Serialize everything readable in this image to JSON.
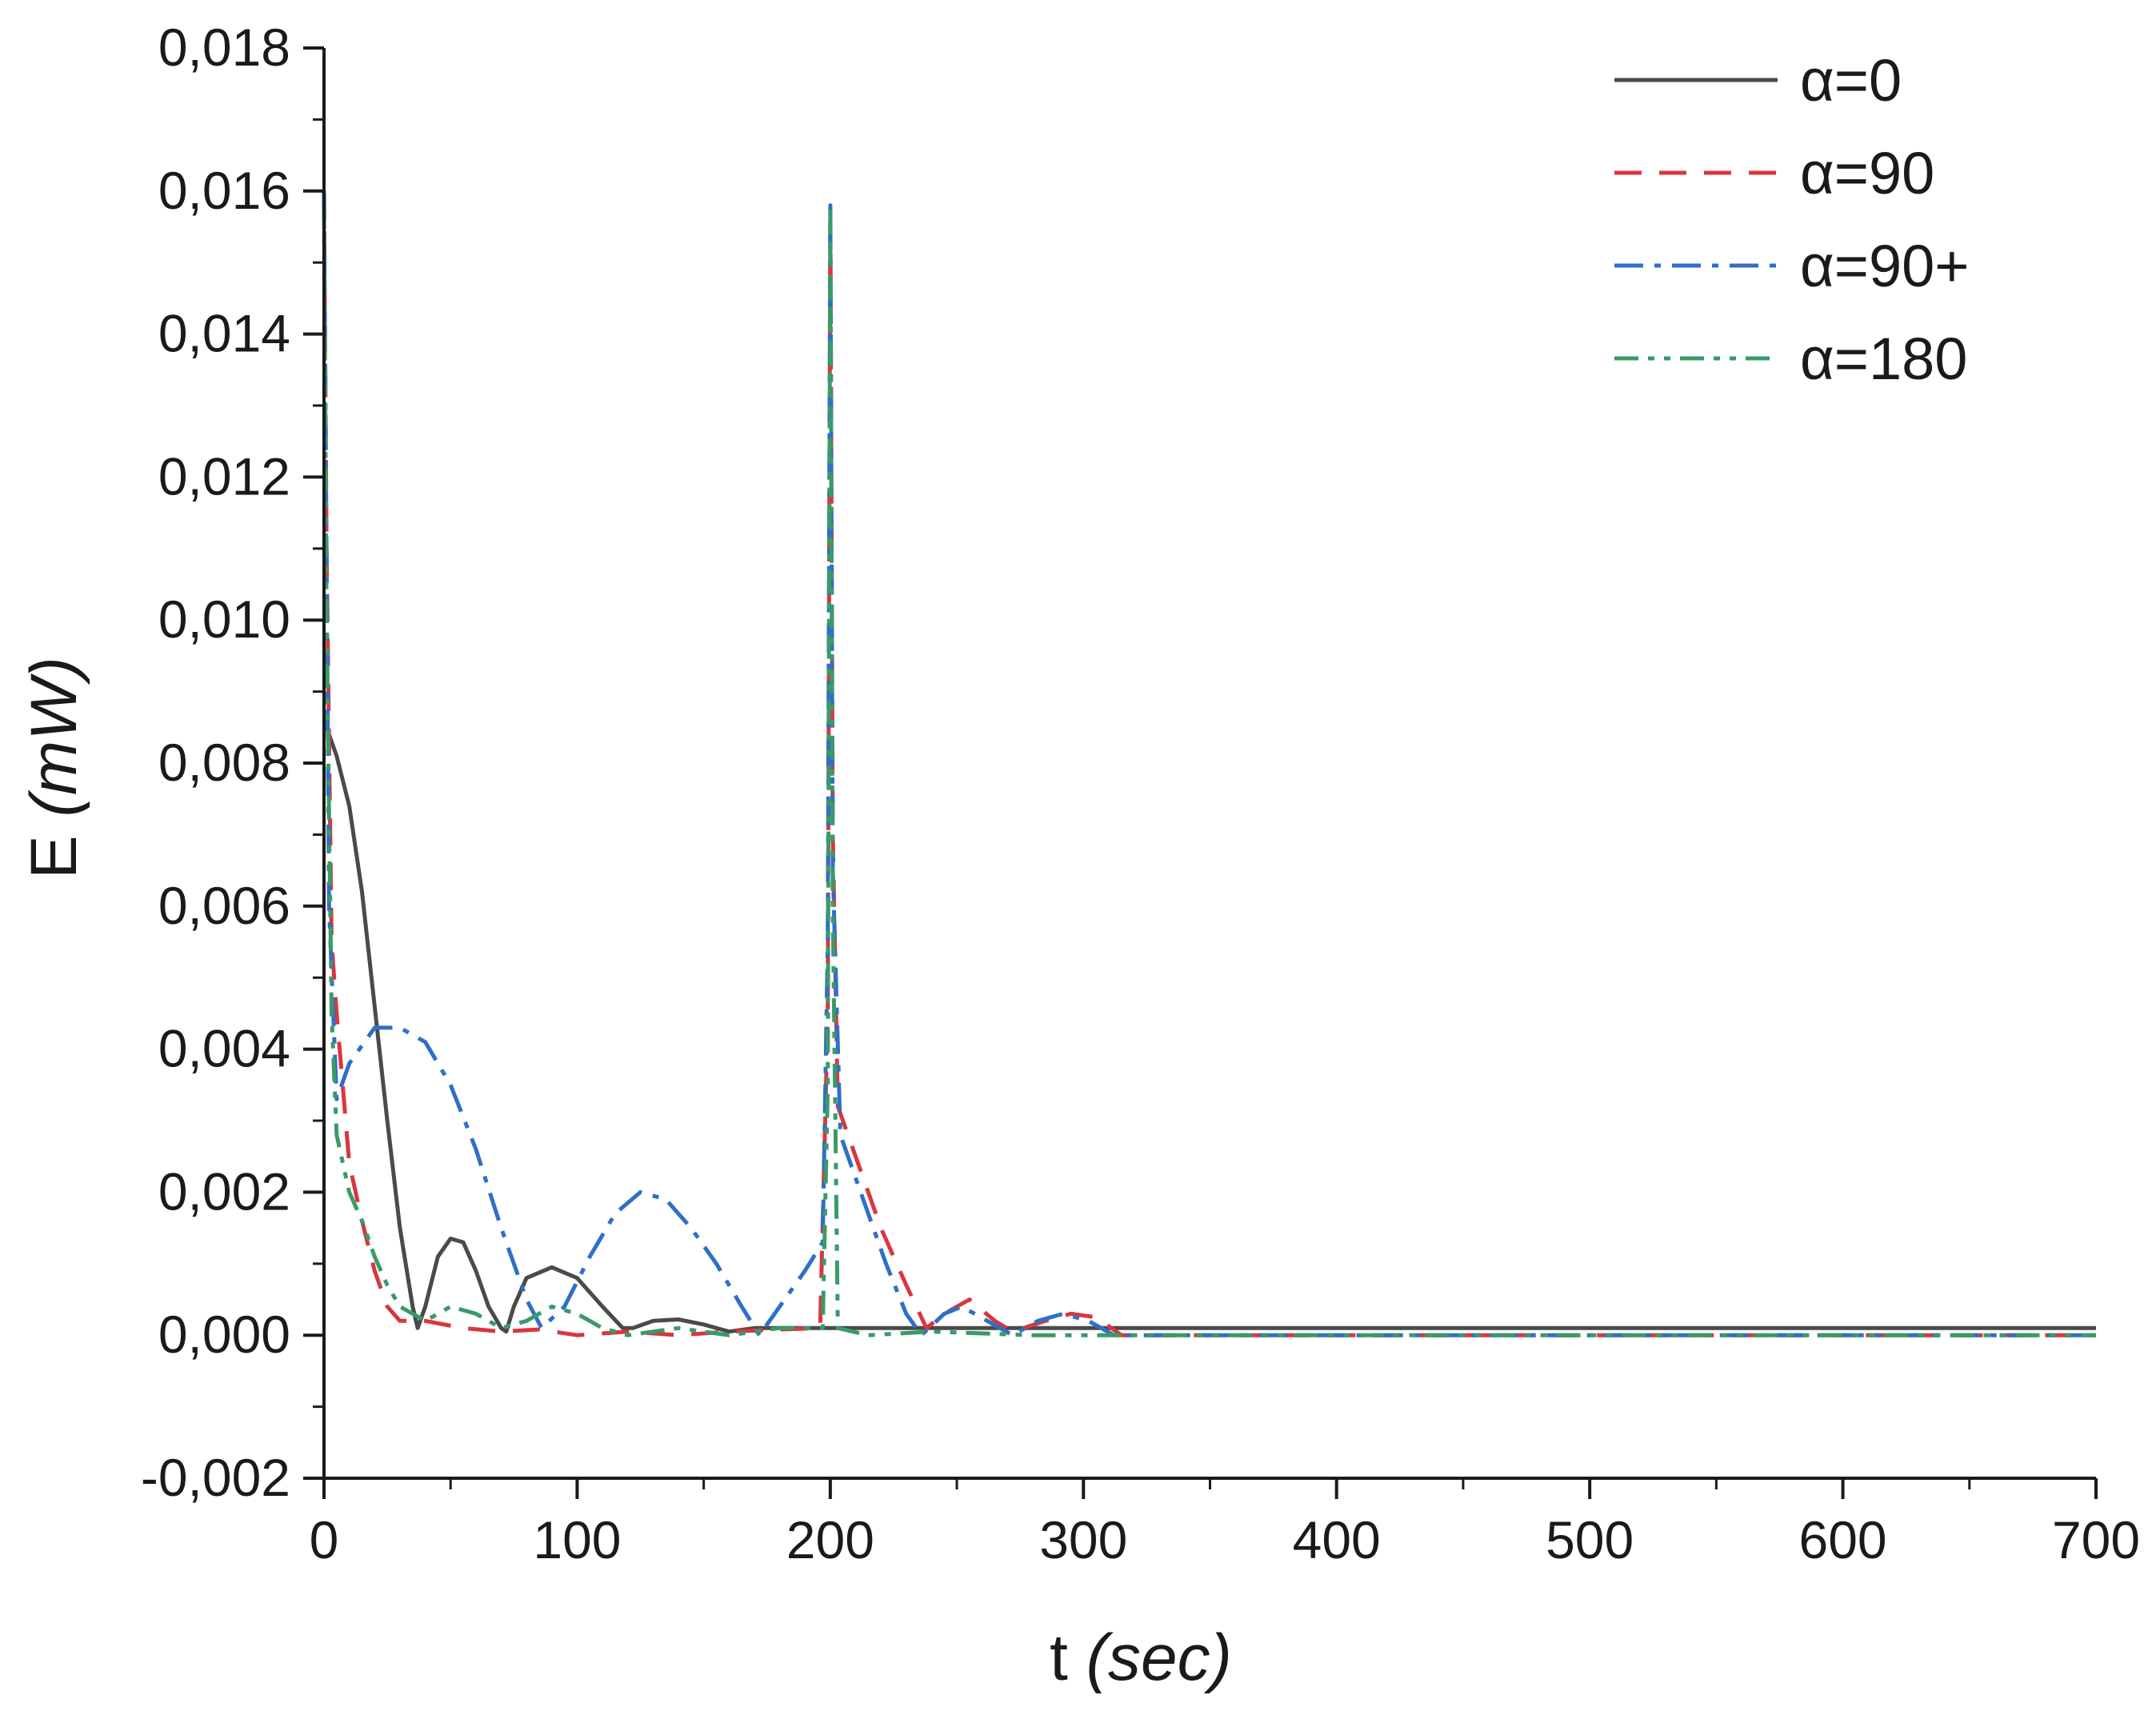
{
  "chart_data": {
    "type": "line",
    "title": "",
    "xlabel": {
      "main": "t ",
      "unit": "(sec)"
    },
    "ylabel": {
      "main": "E ",
      "unit": "(mW)"
    },
    "xlim": [
      0,
      700
    ],
    "ylim": [
      -0.002,
      0.018
    ],
    "x_ticks": [
      0,
      100,
      200,
      300,
      400,
      500,
      600,
      700
    ],
    "x_tick_labels": [
      "0",
      "100",
      "200",
      "300",
      "400",
      "500",
      "600",
      "700"
    ],
    "y_ticks": [
      -0.002,
      0,
      0.002,
      0.004,
      0.006,
      0.008,
      0.01,
      0.012,
      0.014,
      0.016,
      0.018
    ],
    "y_tick_labels": [
      "-0,002",
      "0,000",
      "0,002",
      "0,004",
      "0,006",
      "0,008",
      "0,010",
      "0,012",
      "0,014",
      "0,016",
      "0,018"
    ],
    "grid": false,
    "legend_position": "top-right",
    "series": [
      {
        "name": "α=0",
        "color": "#4a4a4a",
        "dash": "solid",
        "points": [
          [
            0,
            0.0086
          ],
          [
            5,
            0.0081
          ],
          [
            10,
            0.0074
          ],
          [
            15,
            0.0062
          ],
          [
            20,
            0.0046
          ],
          [
            25,
            0.003
          ],
          [
            30,
            0.0015
          ],
          [
            35,
            0.0004
          ],
          [
            37,
            0.0001
          ],
          [
            40,
            0.0004
          ],
          [
            45,
            0.0011
          ],
          [
            50,
            0.00135
          ],
          [
            55,
            0.0013
          ],
          [
            60,
            0.0009
          ],
          [
            65,
            0.0004
          ],
          [
            70,
            0.0001
          ],
          [
            72,
            5e-05
          ],
          [
            75,
            0.0004
          ],
          [
            80,
            0.0008
          ],
          [
            90,
            0.00095
          ],
          [
            100,
            0.0008
          ],
          [
            110,
            0.0004
          ],
          [
            118,
            0.0001
          ],
          [
            122,
            0.0001
          ],
          [
            130,
            0.0002
          ],
          [
            140,
            0.00022
          ],
          [
            150,
            0.00015
          ],
          [
            160,
            5e-05
          ],
          [
            170,
            0.0001
          ],
          [
            200,
            0.0001
          ],
          [
            300,
            0.0001
          ],
          [
            400,
            0.0001
          ],
          [
            500,
            0.0001
          ],
          [
            600,
            0.0001
          ],
          [
            700,
            0.0001
          ]
        ]
      },
      {
        "name": "α=90",
        "color": "#d9363e",
        "dash": "dashed",
        "points": [
          [
            0,
            0.016
          ],
          [
            1,
            0.011
          ],
          [
            3,
            0.0055
          ],
          [
            5,
            0.0045
          ],
          [
            10,
            0.0024
          ],
          [
            15,
            0.0016
          ],
          [
            20,
            0.0009
          ],
          [
            25,
            0.0004
          ],
          [
            30,
            0.0002
          ],
          [
            40,
            0.0002
          ],
          [
            55,
            0.0001
          ],
          [
            70,
            5e-05
          ],
          [
            85,
            8e-05
          ],
          [
            100,
            0.0
          ],
          [
            120,
            5e-05
          ],
          [
            140,
            0.0
          ],
          [
            160,
            5e-05
          ],
          [
            180,
            8e-05
          ],
          [
            196,
            0.0001
          ],
          [
            199,
            0.0045
          ],
          [
            200,
            0.0158
          ],
          [
            201,
            0.007
          ],
          [
            203,
            0.0032
          ],
          [
            210,
            0.0025
          ],
          [
            220,
            0.0015
          ],
          [
            230,
            0.0007
          ],
          [
            238,
            0.0001
          ],
          [
            245,
            0.0003
          ],
          [
            255,
            0.0005
          ],
          [
            265,
            0.0002
          ],
          [
            272,
            5e-05
          ],
          [
            285,
            0.0002
          ],
          [
            295,
            0.0003
          ],
          [
            305,
            0.00025
          ],
          [
            315,
            0.0
          ],
          [
            340,
            0.0
          ],
          [
            400,
            0.0
          ],
          [
            500,
            0.0
          ],
          [
            600,
            0.0
          ],
          [
            700,
            0.0
          ]
        ]
      },
      {
        "name": "α=90+",
        "color": "#2f6fc7",
        "dash": "dashdot",
        "points": [
          [
            0,
            0.016
          ],
          [
            2,
            0.006
          ],
          [
            5,
            0.0033
          ],
          [
            10,
            0.0038
          ],
          [
            20,
            0.0043
          ],
          [
            30,
            0.0043
          ],
          [
            40,
            0.0041
          ],
          [
            50,
            0.0035
          ],
          [
            60,
            0.0026
          ],
          [
            70,
            0.0015
          ],
          [
            80,
            0.0005
          ],
          [
            86,
            0.0001
          ],
          [
            95,
            0.0004
          ],
          [
            105,
            0.0011
          ],
          [
            115,
            0.0017
          ],
          [
            125,
            0.002
          ],
          [
            135,
            0.0019
          ],
          [
            145,
            0.0015
          ],
          [
            155,
            0.001
          ],
          [
            165,
            0.0004
          ],
          [
            172,
            0.0
          ],
          [
            180,
            0.0004
          ],
          [
            190,
            0.0009
          ],
          [
            197,
            0.0013
          ],
          [
            199,
            0.0055
          ],
          [
            200,
            0.0158
          ],
          [
            201,
            0.0065
          ],
          [
            204,
            0.0028
          ],
          [
            212,
            0.002
          ],
          [
            222,
            0.001
          ],
          [
            230,
            0.0003
          ],
          [
            236,
            0.0
          ],
          [
            245,
            0.0003
          ],
          [
            252,
            0.0004
          ],
          [
            262,
            0.0002
          ],
          [
            272,
            0.0
          ],
          [
            282,
            0.0002
          ],
          [
            292,
            0.0003
          ],
          [
            302,
            0.0002
          ],
          [
            312,
            0.0
          ],
          [
            340,
            0.0
          ],
          [
            400,
            0.0
          ],
          [
            500,
            0.0
          ],
          [
            600,
            0.0
          ],
          [
            700,
            0.0
          ]
        ]
      },
      {
        "name": "α=180",
        "color": "#3a9a68",
        "dash": "dashdotdot",
        "points": [
          [
            0,
            0.0158
          ],
          [
            1,
            0.01
          ],
          [
            3,
            0.0045
          ],
          [
            5,
            0.0028
          ],
          [
            10,
            0.002
          ],
          [
            15,
            0.0016
          ],
          [
            20,
            0.0011
          ],
          [
            25,
            0.0007
          ],
          [
            30,
            0.0004
          ],
          [
            40,
            0.0002
          ],
          [
            50,
            0.0004
          ],
          [
            60,
            0.0003
          ],
          [
            70,
            0.0001
          ],
          [
            80,
            0.0002
          ],
          [
            90,
            0.0004
          ],
          [
            100,
            0.0003
          ],
          [
            110,
            0.0001
          ],
          [
            120,
            0.0
          ],
          [
            140,
            0.0001
          ],
          [
            160,
            0.0
          ],
          [
            180,
            0.0001
          ],
          [
            197,
            0.0001
          ],
          [
            199,
            0.0035
          ],
          [
            200,
            0.0158
          ],
          [
            201,
            0.006
          ],
          [
            203,
            0.0001
          ],
          [
            215,
            0.0
          ],
          [
            240,
            5e-05
          ],
          [
            280,
            0.0
          ],
          [
            340,
            0.0
          ],
          [
            400,
            0.0
          ],
          [
            500,
            0.0
          ],
          [
            600,
            0.0
          ],
          [
            700,
            0.0
          ]
        ]
      }
    ]
  }
}
